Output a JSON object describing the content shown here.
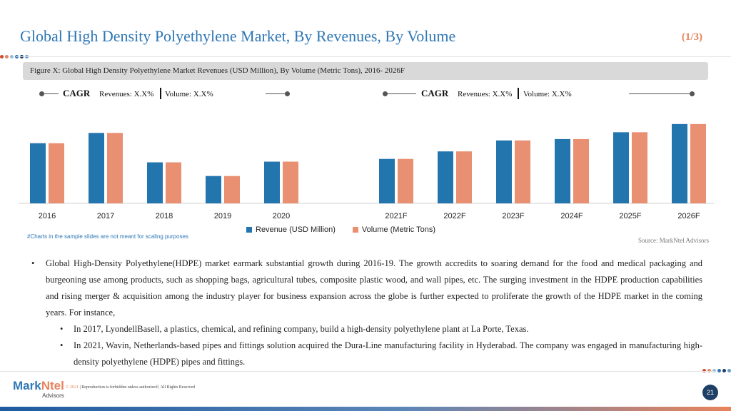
{
  "header": {
    "title": "Global High Density Polyethylene Market, By Revenues, By Volume",
    "page_fraction": "(1/3)"
  },
  "figure": {
    "caption": "Figure X: Global High Density Polyethylene Market Revenues (USD Million), By Volume (Metric Tons), 2016- 2026F"
  },
  "cagr": [
    {
      "label": "CAGR",
      "revenues": "Revenues: X.X%",
      "volume": "Volume: X.X%"
    },
    {
      "label": "CAGR",
      "revenues": "Revenues: X.X%",
      "volume": "Volume: X.X%"
    }
  ],
  "chart_data": {
    "type": "bar",
    "categories": [
      "2016",
      "2017",
      "2018",
      "2019",
      "2020",
      "2021F",
      "2022F",
      "2023F",
      "2024F",
      "2025F",
      "2026F"
    ],
    "series": [
      {
        "name": "Revenue (USD Million)",
        "color": "#2375ae",
        "values": [
          88,
          103,
          60,
          40,
          61,
          65,
          76,
          92,
          94,
          104,
          116
        ]
      },
      {
        "name": "Volume (Metric Tons)",
        "color": "#e98f72",
        "values": [
          88,
          103,
          60,
          40,
          61,
          65,
          76,
          92,
          94,
          104,
          116
        ]
      }
    ],
    "ylim": [
      0,
      120
    ],
    "grid": false,
    "legend_position": "bottom-center",
    "title": "",
    "xlabel": "",
    "ylabel": ""
  },
  "chart_note": "#Charts in the sample slides are not meant for scaling purposes",
  "source": "Source: MarkNtel Advisors",
  "bullets": {
    "main": "Global High-Density Polyethylene(HDPE) market earmark substantial growth during 2016-19. The growth accredits to soaring demand for the food and medical packaging and burgeoning use among products, such as shopping bags, agricultural tubes, composite plastic wood, and wall pipes, etc. The surging investment in the HDPE production capabilities and rising merger & acquisition among the industry player for business expansion across the globe is further expected to proliferate the growth of the HDPE market in the coming years. For instance,",
    "sub": [
      "In 2017, LyondellBasell, a plastics, chemical, and refining company, build a high-density polyethylene plant at La Porte, Texas.",
      "In 2021, Wavin, Netherlands-based pipes and fittings solution acquired the Dura-Line manufacturing facility in Hyderabad. The company was engaged in manufacturing high-density polyethylene (HDPE) pipes and fittings."
    ]
  },
  "footer": {
    "logo_mark": "Mark",
    "logo_ntel": "Ntel",
    "logo_sub": "Advisors",
    "copyright_year": "© 2021",
    "copyright_text": "| Reproduction is forbidden unless authorized | All Rights Reserved",
    "page_number": "21"
  },
  "colors": {
    "accent_blue": "#2f77b5",
    "accent_orange": "#e8835c",
    "dot_palette": [
      "#c94a2f",
      "#e8835c",
      "#9bbbd9",
      "#2f77b5",
      "#1e3f66",
      "#6a9ccf"
    ]
  }
}
